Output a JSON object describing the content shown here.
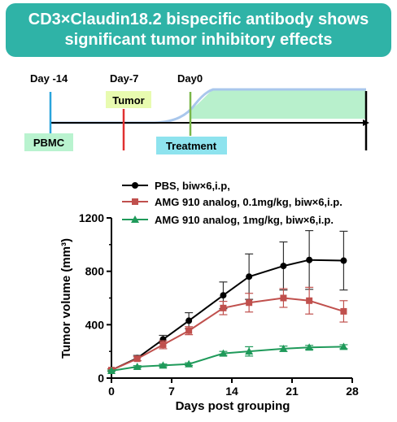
{
  "header": {
    "line1": "CD3×Claudin18.2 bispecific antibody shows",
    "line2": "significant tumor inhibitory effects"
  },
  "timeline": {
    "day_labels": [
      "Day -14",
      "Day-7",
      "Day0"
    ],
    "pbmc_label": "PBMC",
    "tumor_label": "Tumor",
    "treatment_label": "Treatment",
    "colors": {
      "pbmc": "#2aa4dc",
      "tumor": "#e03030",
      "treatment": "#7ab648",
      "fill": "#b8f0cc",
      "line": "#a9c7ec"
    }
  },
  "chart_data": {
    "type": "line",
    "xlabel": "Days post grouping",
    "ylabel": "Tumor volume (mm³)",
    "xlim": [
      0,
      28
    ],
    "ylim": [
      0,
      1200
    ],
    "xticks": [
      "0",
      "7",
      "14",
      "21",
      "28"
    ],
    "yticks": [
      "0",
      "400",
      "800",
      "1200"
    ],
    "legend_position": "top",
    "series": [
      {
        "name": "PBS, biw×6,i.p,",
        "color": "#000000",
        "marker": "circle",
        "x": [
          0,
          3,
          6,
          9,
          13,
          16,
          20,
          23,
          27
        ],
        "y": [
          60,
          150,
          290,
          430,
          620,
          760,
          840,
          885,
          880
        ],
        "err": [
          10,
          20,
          30,
          60,
          100,
          170,
          180,
          220,
          220
        ]
      },
      {
        "name": "AMG 910 analog, 0.1mg/kg, biw×6,i.p.",
        "color": "#c0504d",
        "marker": "square",
        "x": [
          0,
          3,
          6,
          9,
          13,
          16,
          20,
          23,
          27
        ],
        "y": [
          60,
          145,
          250,
          355,
          525,
          565,
          600,
          580,
          500
        ],
        "err": [
          10,
          15,
          30,
          30,
          50,
          70,
          70,
          100,
          80
        ]
      },
      {
        "name": "AMG 910 analog, 1mg/kg, biw×6,i.p.",
        "color": "#1f9a5a",
        "marker": "triangle",
        "x": [
          0,
          3,
          6,
          9,
          13,
          16,
          20,
          23,
          27
        ],
        "y": [
          55,
          85,
          95,
          105,
          185,
          200,
          220,
          230,
          235
        ],
        "err": [
          5,
          8,
          10,
          10,
          15,
          35,
          20,
          15,
          15
        ]
      }
    ]
  }
}
